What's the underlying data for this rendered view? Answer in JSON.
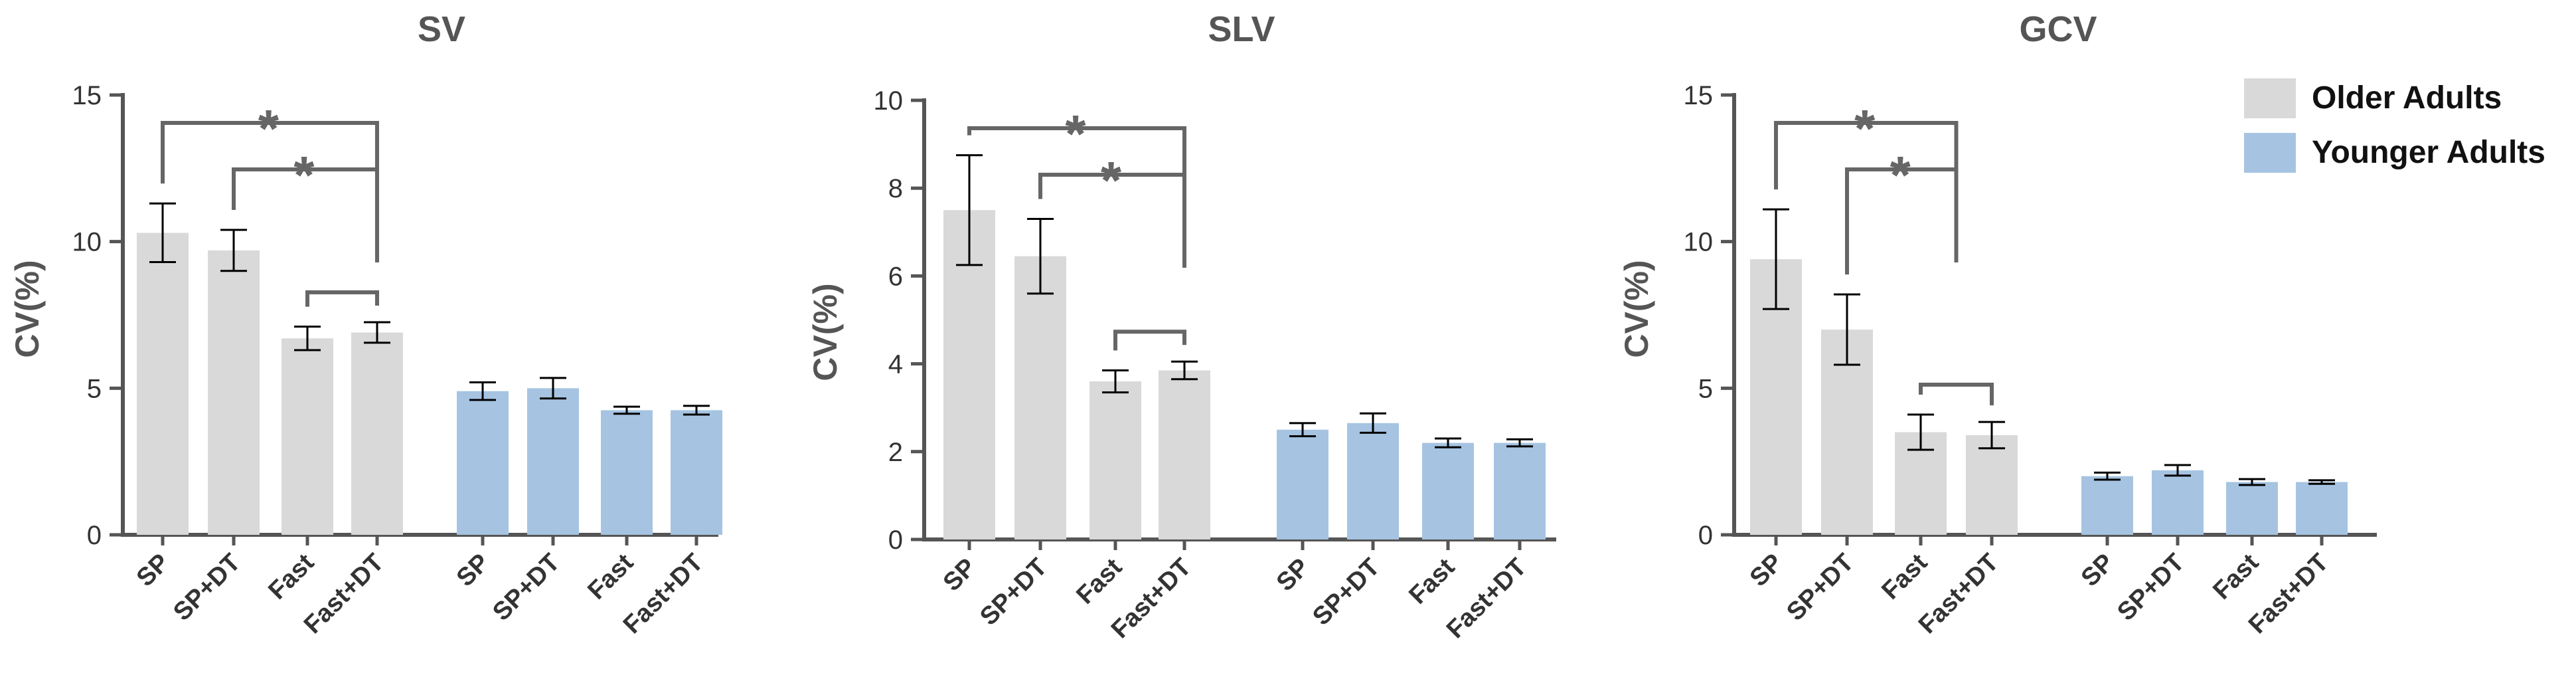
{
  "legend": [
    {
      "name": "Older Adults",
      "color": "#d9d9d9"
    },
    {
      "name": "Younger Adults",
      "color": "#a6c4e2"
    }
  ],
  "chart_data": [
    {
      "type": "bar",
      "title": "SV",
      "ylabel": "CV(%)",
      "ylim": [
        0,
        15
      ],
      "yticks": [
        "0",
        "5",
        "10",
        "15"
      ],
      "groups": [
        {
          "name": "Older Adults",
          "categories": [
            "SP",
            "SP+DT",
            "Fast",
            "Fast+DT"
          ],
          "values": [
            10.3,
            9.7,
            6.7,
            6.9
          ],
          "errors": [
            1.0,
            0.7,
            0.4,
            0.35
          ]
        },
        {
          "name": "Younger Adults",
          "categories": [
            "SP",
            "SP+DT",
            "Fast",
            "Fast+DT"
          ],
          "values": [
            4.9,
            5.0,
            4.25,
            4.25
          ],
          "errors": [
            0.3,
            0.35,
            0.12,
            0.15
          ]
        }
      ],
      "significance": [
        {
          "from": 0,
          "to": 3,
          "label": "*"
        },
        {
          "from": 1,
          "to": 3,
          "label": "*"
        },
        {
          "from": 2,
          "to": 3,
          "label": ""
        }
      ]
    },
    {
      "type": "bar",
      "title": "SLV",
      "ylabel": "CV(%)",
      "ylim": [
        0,
        10
      ],
      "yticks": [
        "0",
        "2",
        "4",
        "6",
        "8",
        "10"
      ],
      "groups": [
        {
          "name": "Older Adults",
          "categories": [
            "SP",
            "SP+DT",
            "Fast",
            "Fast+DT"
          ],
          "values": [
            7.5,
            6.45,
            3.6,
            3.85
          ],
          "errors": [
            1.25,
            0.85,
            0.25,
            0.2
          ]
        },
        {
          "name": "Younger Adults",
          "categories": [
            "SP",
            "SP+DT",
            "Fast",
            "Fast+DT"
          ],
          "values": [
            2.5,
            2.65,
            2.2,
            2.2
          ],
          "errors": [
            0.15,
            0.22,
            0.1,
            0.08
          ]
        }
      ],
      "significance": [
        {
          "from": 0,
          "to": 3,
          "label": "*"
        },
        {
          "from": 1,
          "to": 3,
          "label": "*"
        },
        {
          "from": 2,
          "to": 3,
          "label": ""
        }
      ]
    },
    {
      "type": "bar",
      "title": "GCV",
      "ylabel": "CV(%)",
      "ylim": [
        0,
        15
      ],
      "yticks": [
        "0",
        "5",
        "10",
        "15"
      ],
      "groups": [
        {
          "name": "Older Adults",
          "categories": [
            "SP",
            "SP+DT",
            "Fast",
            "Fast+DT"
          ],
          "values": [
            9.4,
            7.0,
            3.5,
            3.4
          ],
          "errors": [
            1.7,
            1.2,
            0.6,
            0.45
          ]
        },
        {
          "name": "Younger Adults",
          "categories": [
            "SP",
            "SP+DT",
            "Fast",
            "Fast+DT"
          ],
          "values": [
            2.0,
            2.2,
            1.8,
            1.8
          ],
          "errors": [
            0.12,
            0.18,
            0.1,
            0.06
          ]
        }
      ],
      "significance": [
        {
          "from": 0,
          "to": 2.5,
          "label": "*"
        },
        {
          "from": 1,
          "to": 2.5,
          "label": "*"
        },
        {
          "from": 2,
          "to": 3,
          "label": ""
        }
      ]
    }
  ]
}
